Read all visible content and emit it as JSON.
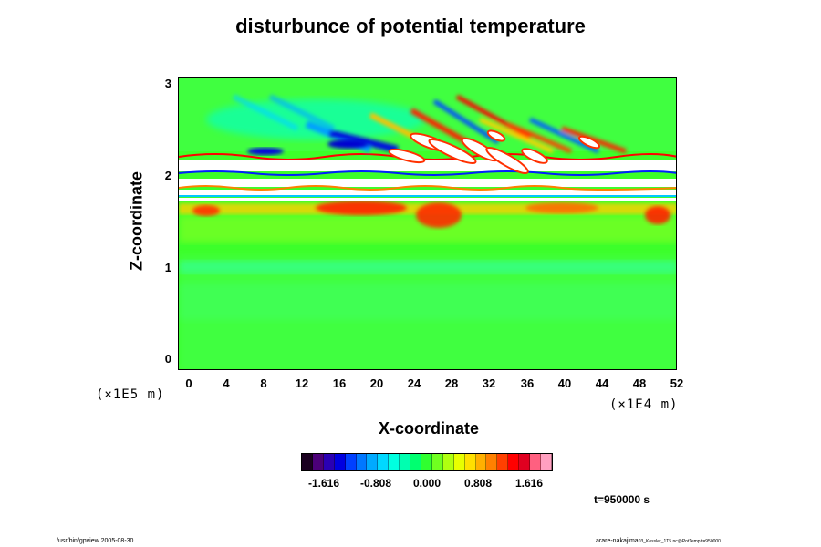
{
  "title": "disturbunce of potential temperature",
  "chart_data": {
    "type": "heatmap",
    "title": "disturbunce of potential temperature",
    "xlabel": "X-coordinate",
    "ylabel": "Z-coordinate",
    "x_units": "(×1E4 m)",
    "y_units": "(×1E5 m)",
    "xlim": [
      0,
      52
    ],
    "ylim": [
      0,
      3
    ],
    "x_ticks": [
      "0",
      "4",
      "8",
      "12",
      "16",
      "20",
      "24",
      "28",
      "32",
      "36",
      "40",
      "44",
      "48",
      "52"
    ],
    "y_ticks": [
      "0",
      "1",
      "2",
      "3"
    ],
    "colorbar": {
      "tick_labels": [
        "-1.616",
        "-0.808",
        "0.000",
        "0.808",
        "1.616"
      ],
      "min": -2.02,
      "max": 2.02,
      "colors": [
        "#1a0020",
        "#4b0078",
        "#2a00b4",
        "#0000e0",
        "#0040ff",
        "#0078ff",
        "#00aaff",
        "#00d8ff",
        "#00ffe0",
        "#00ffb0",
        "#00ff70",
        "#30ff30",
        "#70ff20",
        "#b0ff10",
        "#e8ff00",
        "#ffe000",
        "#ffb000",
        "#ff8000",
        "#ff4000",
        "#ff0000",
        "#e00020",
        "#ff6080",
        "#ffa0c0"
      ]
    },
    "features": [
      {
        "region": "z 0–1.7",
        "value_description": "mostly near 0 (green) with weak positive streaks"
      },
      {
        "region": "z ≈ 1.7",
        "value_description": "positive disturbance band (red/yellow) around x 18–28"
      },
      {
        "region": "z 1.75–2.3",
        "value_description": "saturated layers exceeding range (white) with strong +/- oscillations"
      },
      {
        "region": "z 2.3–3",
        "value_description": "tilted gravity-wave pattern, negative (blue) near x 8–20, positive (red) near x 24–36"
      }
    ]
  },
  "time_label": "t=950000 s",
  "footer_left": "/usr/bin/gpview 2005-08-30",
  "footer_right_main": "arare-nakajima",
  "footer_right_small": "03_Kessler_1T5.nc@PotTemp,t=950000"
}
